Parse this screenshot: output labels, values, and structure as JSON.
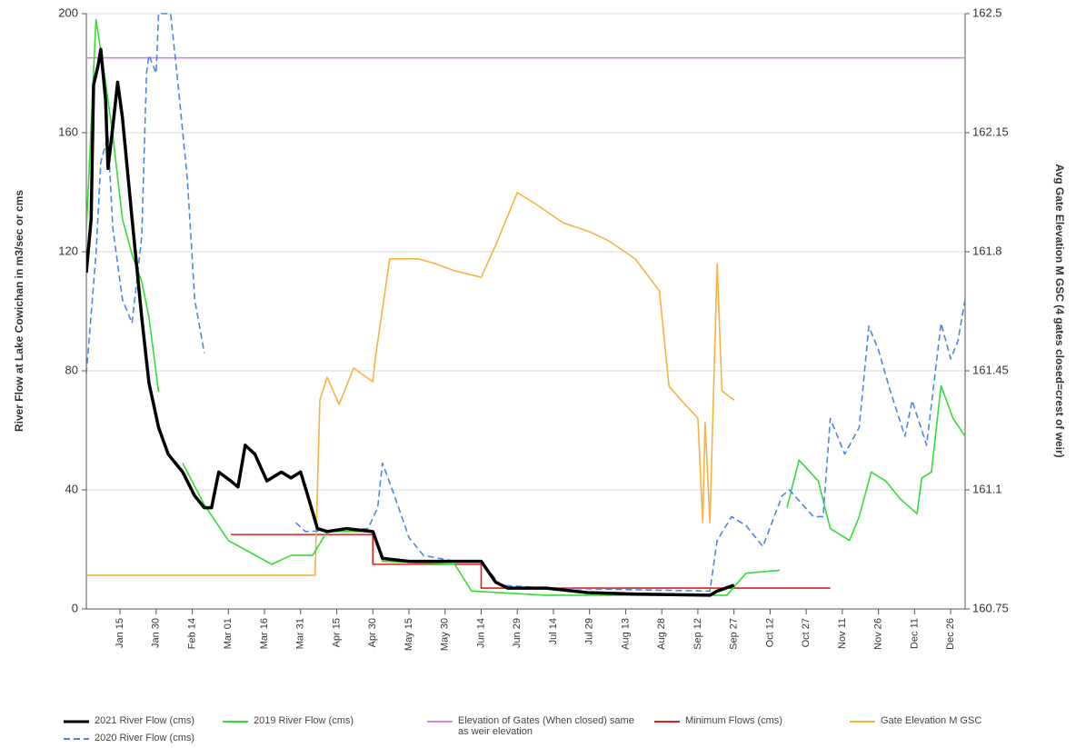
{
  "chart_data": {
    "type": "line",
    "y_label": "River Flow at Lake Cowichan in m3/sec or cms",
    "y2_label": "Avg Gate Elevation M GSC (4 gates closed=crest of weir)",
    "xlim": [
      1,
      366
    ],
    "xticks": [
      {
        "value": 15,
        "label": "Jan 15"
      },
      {
        "value": 30,
        "label": "Jan 30"
      },
      {
        "value": 45,
        "label": "Feb 14"
      },
      {
        "value": 60,
        "label": "Mar 01"
      },
      {
        "value": 75,
        "label": "Mar 16"
      },
      {
        "value": 90,
        "label": "Mar 31"
      },
      {
        "value": 105,
        "label": "Apr 15"
      },
      {
        "value": 120,
        "label": "Apr 30"
      },
      {
        "value": 135,
        "label": "May 15"
      },
      {
        "value": 150,
        "label": "May 30"
      },
      {
        "value": 165,
        "label": "Jun 14"
      },
      {
        "value": 180,
        "label": "Jun 29"
      },
      {
        "value": 195,
        "label": "Jul 14"
      },
      {
        "value": 210,
        "label": "Jul 29"
      },
      {
        "value": 225,
        "label": "Aug 13"
      },
      {
        "value": 240,
        "label": "Aug 28"
      },
      {
        "value": 255,
        "label": "Sep 12"
      },
      {
        "value": 270,
        "label": "Sep 27"
      },
      {
        "value": 285,
        "label": "Oct 12"
      },
      {
        "value": 300,
        "label": "Oct 27"
      },
      {
        "value": 315,
        "label": "Nov 11"
      },
      {
        "value": 330,
        "label": "Nov 26"
      },
      {
        "value": 345,
        "label": "Dec 11"
      },
      {
        "value": 360,
        "label": "Dec 26"
      }
    ],
    "ylim": [
      0,
      200
    ],
    "yticks": [
      0,
      40,
      80,
      120,
      160,
      200
    ],
    "y2lim": [
      160.75,
      162.5
    ],
    "y2ticks": [
      160.75,
      161.1,
      161.45,
      161.8,
      162.15,
      162.5
    ],
    "grid": true,
    "series": [
      {
        "name": "2021 River Flow (cms)",
        "color": "#000000",
        "dash": "solid",
        "x": [
          1,
          3,
          4,
          6,
          7,
          9,
          10,
          12,
          14,
          16,
          20,
          24,
          27,
          31,
          35,
          41,
          46,
          50,
          53,
          56,
          61,
          64,
          67,
          71,
          76,
          82,
          86,
          90,
          93,
          97,
          101,
          109,
          120,
          124,
          135,
          154,
          165,
          171,
          176,
          192,
          209,
          229,
          260,
          263,
          270
        ],
        "values": [
          113,
          131,
          176,
          183,
          188,
          171,
          148,
          162,
          177,
          165,
          131,
          98,
          76,
          61,
          52,
          46,
          38,
          34,
          34,
          46,
          43,
          41,
          55,
          52,
          43,
          46,
          44,
          46,
          38,
          27,
          26,
          27,
          26,
          17,
          16,
          16,
          16,
          9,
          7,
          7,
          5.5,
          5,
          4.6,
          6,
          8
        ]
      },
      {
        "name": "2020 River Flow (cms)",
        "color": "#4a86e8",
        "dash": "dashed",
        "x": [
          1,
          5,
          7,
          10,
          12,
          16,
          20,
          24,
          26,
          27,
          30,
          31,
          36,
          39,
          43,
          46,
          50,
          70,
          88,
          92,
          118,
          122,
          124,
          129,
          135,
          141,
          154,
          165,
          173,
          192,
          260,
          263,
          269,
          275,
          282,
          290,
          293,
          303,
          307,
          310,
          316,
          322,
          326,
          330,
          335,
          341,
          344,
          350,
          356,
          360,
          363,
          366
        ],
        "values": [
          79,
          119,
          150,
          159,
          128,
          104,
          96,
          125,
          180,
          186,
          180,
          200,
          200,
          177,
          144,
          104,
          86,
          null,
          29,
          26,
          27,
          34,
          49,
          38,
          24,
          18,
          16,
          16,
          8,
          7,
          6,
          23,
          31,
          28,
          21,
          38,
          40,
          31,
          31,
          64,
          52,
          61,
          95,
          87,
          73,
          58,
          70,
          55,
          96,
          84,
          90,
          104
        ]
      },
      {
        "name": "2019 River Flow (cms)",
        "color": "#33dd33",
        "dash": "solid",
        "x": [
          1,
          5,
          9,
          12,
          16,
          20,
          24,
          27,
          31,
          36,
          41,
          50,
          60,
          78,
          86,
          95,
          101,
          120,
          124,
          154,
          161,
          192,
          267,
          275,
          289,
          291,
          292,
          297,
          305,
          310,
          318,
          322,
          327,
          333,
          339,
          346,
          348,
          352,
          356,
          361,
          366
        ],
        "values": [
          127,
          198,
          177,
          159,
          131,
          119,
          110,
          98,
          73,
          null,
          49,
          35,
          23,
          15,
          18,
          18,
          26,
          26,
          16,
          15,
          6,
          4.6,
          4.6,
          12,
          13,
          null,
          34,
          50,
          43,
          27,
          23,
          31,
          46,
          43,
          37,
          32,
          44,
          46,
          75,
          64,
          58
        ]
      },
      {
        "name": "Elevation of Gates (When closed) same as weir elevation",
        "color": "#cc88dd",
        "dash": "solid",
        "axis": "y2",
        "x": [
          1,
          366
        ],
        "values": [
          162.37,
          162.37
        ]
      },
      {
        "name": "Minimum Flows (cms)",
        "color": "#e02020",
        "dash": "solid",
        "x": [
          61,
          120,
          120,
          165,
          165,
          310
        ],
        "values": [
          25,
          25,
          15,
          15,
          7,
          7
        ]
      },
      {
        "name": "Gate Elevation M GSC",
        "color": "#f5b342",
        "dash": "solid",
        "axis": "y2",
        "x": [
          1,
          96,
          98,
          101,
          106,
          112,
          120,
          121,
          127,
          139,
          146,
          154,
          165,
          171,
          180,
          188,
          199,
          210,
          218,
          229,
          239,
          243,
          248,
          255,
          257,
          258,
          260,
          263,
          265,
          270
        ],
        "values": [
          160.849,
          160.849,
          161.364,
          161.431,
          161.351,
          161.458,
          161.418,
          161.485,
          161.779,
          161.779,
          161.765,
          161.744,
          161.725,
          161.819,
          161.974,
          161.939,
          161.885,
          161.859,
          161.832,
          161.779,
          161.685,
          161.405,
          161.364,
          161.311,
          161.004,
          161.298,
          161.004,
          161.765,
          161.391,
          161.364
        ]
      }
    ]
  }
}
